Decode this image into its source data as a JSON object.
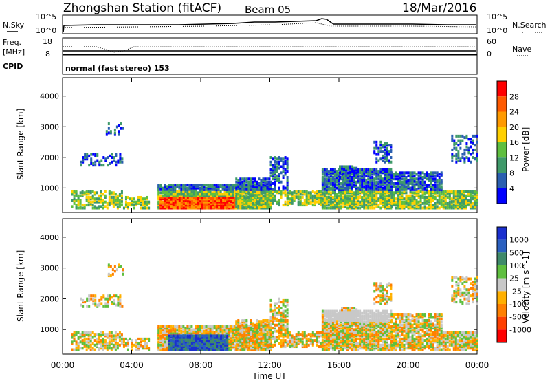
{
  "header": {
    "station": "Zhongshan Station (fitACF)",
    "beam": "Beam 05",
    "date": "18/Mar/2016"
  },
  "top_panel": {
    "left_label": "N.Sky",
    "right_label": "N.Search",
    "left_ticks": [
      "10^5",
      "10^0"
    ],
    "right_ticks": [
      "10^5",
      "10^0"
    ]
  },
  "freq_panel": {
    "left_label_1": "Freq.",
    "left_label_2": "[MHz]",
    "right_label": "Nave",
    "left_ticks": [
      "18",
      "8"
    ],
    "right_ticks": [
      "60",
      "0"
    ]
  },
  "cpid_panel": {
    "label": "CPID",
    "text": "normal (fast stereo) 153"
  },
  "chart_data": [
    {
      "type": "heatmap",
      "title": "",
      "xlabel": "",
      "ylabel": "Slant Range [km]",
      "ylim": [
        200,
        4600
      ],
      "xlim": [
        0,
        24
      ],
      "yticks": [
        1000,
        2000,
        3000,
        4000
      ],
      "colorbar": {
        "label": "Power [dB]",
        "ticks": [
          "28",
          "24",
          "20",
          "16",
          "12",
          "8",
          "4"
        ],
        "colors": [
          "#ff0000",
          "#ff5a00",
          "#ff9a00",
          "#ffd000",
          "#5fbf3f",
          "#3f9a6a",
          "#2a5fb0",
          "#0000ff"
        ]
      }
    },
    {
      "type": "heatmap",
      "title": "",
      "xlabel": "Time UT",
      "ylabel": "Slant Range [km]",
      "ylim": [
        200,
        4600
      ],
      "xlim": [
        0,
        24
      ],
      "yticks": [
        1000,
        2000,
        3000,
        4000
      ],
      "xticks": [
        "00:00",
        "04:00",
        "08:00",
        "12:00",
        "16:00",
        "20:00",
        "00:00"
      ],
      "colorbar": {
        "label": "Velocity [m s^-1]",
        "ticks": [
          "1000",
          "500",
          "100",
          "25",
          "-25",
          "-100",
          "-500",
          "-1000"
        ],
        "colors": [
          "#1a2fcf",
          "#2a60c0",
          "#3f8a6a",
          "#5fbf3f",
          "#c8c8c8",
          "#ffb000",
          "#ff8000",
          "#ff4000",
          "#ff0000"
        ]
      }
    }
  ]
}
